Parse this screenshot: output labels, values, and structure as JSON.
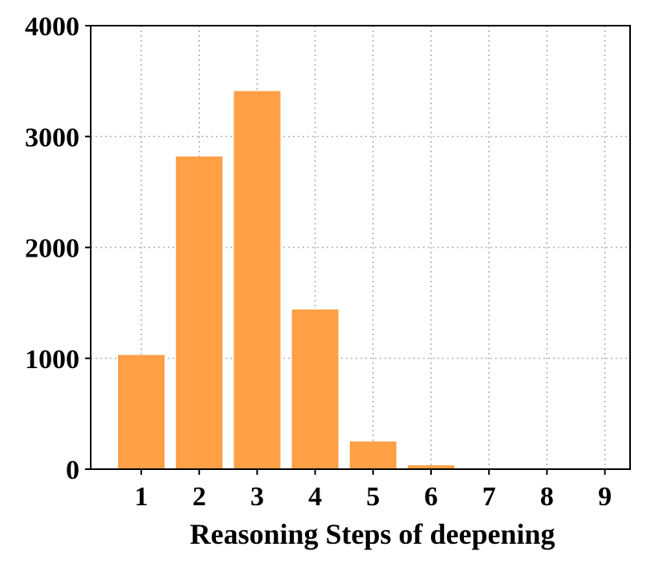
{
  "chart_data": {
    "type": "bar",
    "title": "",
    "xlabel": "Reasoning Steps of deepening",
    "ylabel": "",
    "categories": [
      "1",
      "2",
      "3",
      "4",
      "5",
      "6",
      "7",
      "8",
      "9"
    ],
    "values": [
      1030,
      2820,
      3410,
      1440,
      250,
      35,
      5,
      2,
      1
    ],
    "ylim": [
      0,
      4000
    ],
    "yticks": [
      "0",
      "1000",
      "2000",
      "3000",
      "4000"
    ],
    "grid": true,
    "colors": {
      "bar": "#FF9F46",
      "axis": "#000000",
      "grid": "#b0b0b0"
    }
  }
}
